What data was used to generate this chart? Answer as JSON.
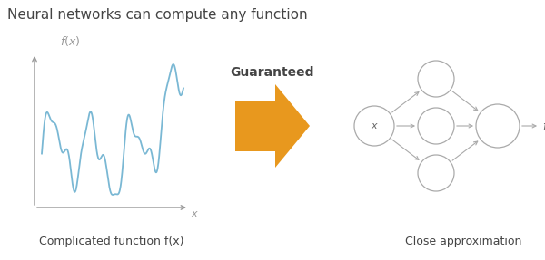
{
  "title": "Neural networks can compute any function",
  "title_fontsize": 11,
  "title_color": "#444444",
  "left_label": "Complicated function f(x)",
  "right_label": "Close approximation",
  "arrow_label": "Guaranteed",
  "arrow_color": "#E8981E",
  "arrow_label_color": "#444444",
  "curve_color": "#7ab8d4",
  "axis_color": "#999999",
  "node_edge_color": "#aaaaaa",
  "node_face_color": "#ffffff",
  "fx_label_color": "#999999",
  "x_label_color": "#999999",
  "background_color": "#ffffff",
  "figw": 6.0,
  "figh": 2.87,
  "dpi": 100
}
